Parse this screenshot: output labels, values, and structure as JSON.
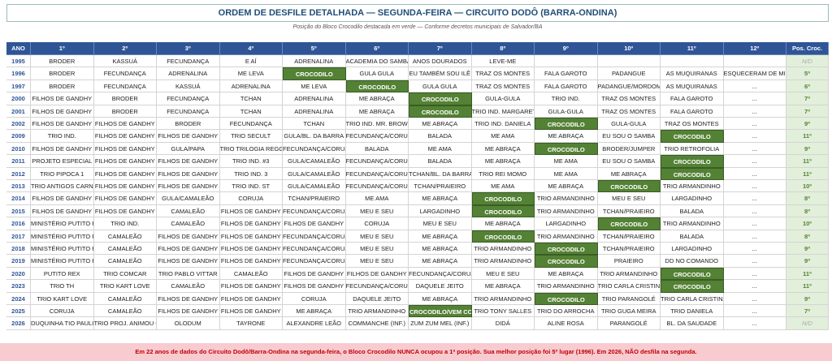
{
  "header": {
    "title": "ORDEM DE DESFILE DETALHADA — SEGUNDA-FEIRA — CIRCUITO DODÔ (BARRA-ONDINA)",
    "subtitle": "Posição do Bloco Crocodilo destacada em verde — Conforme decretos municipais de Salvador/BA"
  },
  "table": {
    "columns": [
      "ANO",
      "1º",
      "2º",
      "3º",
      "4º",
      "5º",
      "6º",
      "7º",
      "8º",
      "9º",
      "10º",
      "11º",
      "12º",
      "Pos. Croc."
    ],
    "rows": [
      [
        "1995",
        "BRODER",
        "KASSUÁ",
        "FECUNDANÇA",
        "E AÍ",
        "ADRENALINA",
        "ACADEMIA DO SAMBA",
        "ANOS DOURADOS",
        "LEVE-ME",
        "",
        "",
        "",
        "",
        "N/D"
      ],
      [
        "1996",
        "BRODER",
        "FECUNDANÇA",
        "ADRENALINA",
        "ME LEVA",
        "CROCODILO",
        "GULA GULA",
        "EU TAMBÉM SOU ILÊ",
        "TRAZ OS MONTES",
        "FALA GAROTO",
        "PADANGUE",
        "AS MUQUIRANAS",
        "ESQUECERAM DE MIM",
        "5º"
      ],
      [
        "1997",
        "BRODER",
        "FECUNDANÇA",
        "KASSUÁ",
        "ADRENALINA",
        "ME LEVA",
        "CROCODILO",
        "GULA GULA",
        "TRAZ OS MONTES",
        "FALA GAROTO",
        "PADANGUE/MORDOMIA",
        "AS MUQUIRANAS",
        "...",
        "6º"
      ],
      [
        "2000",
        "FILHOS DE GANDHY",
        "BRODER",
        "FECUNDANÇA",
        "TCHAN",
        "ADRENALINA",
        "ME ABRAÇA",
        "CROCODILO",
        "GULA-GULA",
        "TRIO IND.",
        "TRAZ OS MONTES",
        "FALA GAROTO",
        "...",
        "7º"
      ],
      [
        "2001",
        "FILHOS DE GANDHY",
        "BRODER",
        "FECUNDANÇA",
        "TCHAN",
        "ADRENALINA",
        "ME ABRAÇA",
        "CROCODILO",
        "TRIO IND. MARGARETH",
        "GULA-GULA",
        "TRAZ OS MONTES",
        "FALA GAROTO",
        "...",
        "7º"
      ],
      [
        "2002",
        "FILHOS DE GANDHY",
        "FILHOS DE GANDHY",
        "BRODER",
        "FECUNDANÇA",
        "TCHAN",
        "TRIO IND. MR. BROWN",
        "ME ABRAÇA",
        "TRIO IND. DANIELA",
        "CROCODILO",
        "GULA-GULA",
        "TRAZ OS MONTES",
        "...",
        "9º"
      ],
      [
        "2009",
        "TRIO IND.",
        "FILHOS DE GANDHY",
        "FILHOS DE GANDHY",
        "TRIO SECULT",
        "GULA/BL. DA BARRA",
        "FECUNDANÇA/CORUJA",
        "BALADA",
        "ME AMA",
        "ME ABRAÇA",
        "EU SOU O SAMBA",
        "CROCODILO",
        "...",
        "11º"
      ],
      [
        "2010",
        "FILHOS DE GANDHY",
        "FILHOS DE GANDHY",
        "GULA/PAPA",
        "TRIO TRILOGIA REGGAE",
        "FECUNDANÇA/CORUJA",
        "BALADA",
        "ME AMA",
        "ME ABRAÇA",
        "CROCODILO",
        "BRODER/JUMPER",
        "TRIO RETROFOLIA",
        "...",
        "9º"
      ],
      [
        "2011",
        "PROJETO ESPECIAL",
        "FILHOS DE GANDHY",
        "FILHOS DE GANDHY",
        "TRIO IND. #3",
        "GULA/CAMALEÃO",
        "FECUNDANÇA/CORUJA",
        "BALADA",
        "ME ABRAÇA",
        "ME AMA",
        "EU SOU O SAMBA",
        "CROCODILO",
        "...",
        "11º"
      ],
      [
        "2012",
        "TRIO PIPOCA 1",
        "FILHOS DE GANDHY",
        "FILHOS DE GANDHY",
        "TRIO IND. 3",
        "GULA/CAMALEÃO",
        "FECUNDANÇA/CORUJA",
        "TCHAN/BL. DA BARRA",
        "TRIO REI MOMO",
        "ME AMA",
        "ME ABRAÇA",
        "CROCODILO",
        "...",
        "11º"
      ],
      [
        "2013",
        "TRIO ANTIGOS CARNAVAIS",
        "FILHOS DE GANDHY",
        "FILHOS DE GANDHY",
        "TRIO IND. ST",
        "GULA/CAMALEÃO",
        "FECUNDANÇA/CORUJA",
        "TCHAN/PRAIEIRO",
        "ME AMA",
        "ME ABRAÇA",
        "CROCODILO",
        "TRIO ARMANDINHO",
        "...",
        "10º"
      ],
      [
        "2014",
        "FILHOS DE GANDHY",
        "FILHOS DE GANDHY",
        "GULA/CAMALEÃO",
        "CORUJA",
        "TCHAN/PRAIEIRO",
        "ME AMA",
        "ME ABRAÇA",
        "CROCODILO",
        "TRIO ARMANDINHO",
        "MEU E SEU",
        "LARGADINHO",
        "...",
        "8º"
      ],
      [
        "2015",
        "FILHOS DE GANDHY",
        "FILHOS DE GANDHY",
        "CAMALEÃO",
        "FILHOS DE GANDHY",
        "FECUNDANÇA/CORUJA",
        "MEU E SEU",
        "LARGADINHO",
        "CROCODILO",
        "TRIO ARMANDINHO",
        "TCHAN/PRAIEIRO",
        "BALADA",
        "...",
        "8º"
      ],
      [
        "2016",
        "MINISTÉRIO PUTITO REX",
        "TRIO IND.",
        "CAMALEÃO",
        "FILHOS DE GANDHY",
        "FILHOS DE GANDHY",
        "CORUJA",
        "MEU E SEU",
        "ME ABRAÇA",
        "LARGADINHO",
        "CROCODILO",
        "TRIO ARMANDINHO",
        "...",
        "10º"
      ],
      [
        "2017",
        "MINISTÉRIO PUTITO REX",
        "CAMALEÃO",
        "FILHOS DE GANDHY",
        "FILHOS DE GANDHY",
        "FECUNDANÇA/CORUJA",
        "MEU E SEU",
        "ME ABRAÇA",
        "CROCODILO",
        "TRIO ARMANDINHO",
        "TCHAN/PRAIEIRO",
        "BALADA",
        "...",
        "8º"
      ],
      [
        "2018",
        "MINISTÉRIO PUTITO REX",
        "CAMALEÃO",
        "FILHOS DE GANDHY",
        "FILHOS DE GANDHY",
        "FECUNDANÇA/CORUJA",
        "MEU E SEU",
        "ME ABRAÇA",
        "TRIO ARMANDINHO",
        "CROCODILO",
        "TCHAN/PRAIEIRO",
        "LARGADINHO",
        "...",
        "9º"
      ],
      [
        "2019",
        "MINISTÉRIO PUTITO REX",
        "CAMALEÃO",
        "FILHOS DE GANDHY",
        "FILHOS DE GANDHY",
        "FECUNDANÇA/CORUJA",
        "MEU E SEU",
        "ME ABRAÇA",
        "TRIO ARMANDINHO",
        "CROCODILO",
        "PRAIEIRO",
        "DD NO COMANDO",
        "...",
        "9º"
      ],
      [
        "2020",
        "PUTITO REX",
        "TRIO COMCAR",
        "TRIO PABLO VITTAR",
        "CAMALEÃO",
        "FILHOS DE GANDHY",
        "FILHOS DE GANDHY",
        "FECUNDANÇA/CORUJA",
        "MEU E SEU",
        "ME ABRAÇA",
        "TRIO ARMANDINHO",
        "CROCODILO",
        "...",
        "11º"
      ],
      [
        "2023",
        "TRIO TH",
        "TRIO KART LOVE",
        "CAMALEÃO",
        "FILHOS DE GANDHY",
        "FILHOS DE GANDHY",
        "FECUNDANÇA/CORUJA",
        "DAQUELE JEITO",
        "ME ABRAÇA",
        "TRIO ARMANDINHO",
        "TRIO CARLA CRISTINA",
        "CROCODILO",
        "...",
        "11º"
      ],
      [
        "2024",
        "TRIO KART LOVE",
        "CAMALEÃO",
        "FILHOS DE GANDHY",
        "FILHOS DE GANDHY",
        "CORUJA",
        "DAQUELE JEITO",
        "ME ABRAÇA",
        "TRIO ARMANDINHO",
        "CROCODILO",
        "TRIO PARANGOLÉ",
        "TRIO CARLA CRISTINA",
        "...",
        "9º"
      ],
      [
        "2025",
        "CORUJA",
        "CAMALEÃO",
        "FILHOS DE GANDHY",
        "FILHOS DE GANDHY",
        "ME ABRAÇA",
        "TRIO ARMANDINHO",
        "CROCODILO/VEM COMIGO",
        "TRIO TONY SALLES",
        "TRIO DO ARROCHA",
        "TRIO GUGA MEIRA",
        "TRIO DANIELA",
        "...",
        "7º"
      ],
      [
        "2026",
        "DUQUINHA TIO PAULINHO",
        "TRIO PROJ. ANIMOU GERAL",
        "OLODUM",
        "TAYRONE",
        "ALEXANDRE LEÃO",
        "COMMANCHE (INF.)",
        "ZUM ZUM MEL (INF.)",
        "DIDÁ",
        "ALINE ROSA",
        "PARANGOLÉ",
        "BL. DA SAUDADE",
        "...",
        "N/D"
      ]
    ]
  },
  "footer": {
    "note": "Em 22 anos de dados do Circuito Dodô/Barra-Ondina na segunda-feira, o Bloco Crocodilo NUNCA ocupou a 1ª posição. Sua melhor posição foi 5º lugar (1996). Em 2026, NÃO desfila na segunda."
  }
}
